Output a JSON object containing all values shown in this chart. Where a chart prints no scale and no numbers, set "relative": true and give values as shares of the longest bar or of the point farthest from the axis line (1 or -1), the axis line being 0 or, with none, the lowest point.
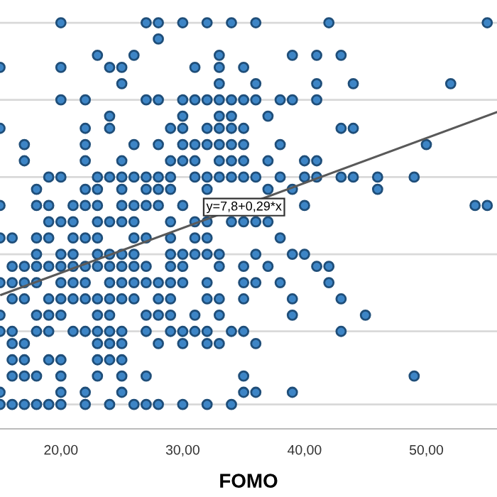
{
  "chart_data": {
    "type": "scatter",
    "relative": true,
    "xlabel": "FOMO",
    "xlim": [
      15,
      55.8
    ],
    "xticks": [
      {
        "value": 20,
        "label": "20,00"
      },
      {
        "value": 30,
        "label": "30,00"
      },
      {
        "value": 40,
        "label": "40,00"
      },
      {
        "value": 50,
        "label": "50,00"
      }
    ],
    "legend": false,
    "annotations": [
      "y=7,8+0,29*x"
    ],
    "ref_lines": [
      {
        "axis": "y",
        "value": 0.06,
        "color": "#d9d9d9"
      },
      {
        "axis": "y",
        "value": 0.24,
        "color": "#d9d9d9"
      },
      {
        "axis": "y",
        "value": 0.43,
        "color": "#d9d9d9"
      },
      {
        "axis": "y",
        "value": 0.62,
        "color": "#d9d9d9"
      },
      {
        "axis": "y",
        "value": 0.81,
        "color": "#d9d9d9"
      },
      {
        "axis": "y",
        "value": 1.0,
        "color": "#d9d9d9"
      }
    ],
    "series": [
      {
        "color": "#3d85c6",
        "marker": "circle",
        "x": [
          20,
          27,
          28,
          30,
          32,
          34,
          36,
          42,
          55,
          28,
          23,
          26,
          33,
          39,
          41,
          43,
          15,
          20,
          24,
          25,
          31,
          33,
          35,
          25,
          33,
          36,
          41,
          44,
          52,
          20,
          22,
          27,
          28,
          30,
          31,
          32,
          33,
          34,
          35,
          36,
          38,
          39,
          41,
          24,
          30,
          33,
          34,
          37,
          15,
          22,
          24,
          29,
          30,
          32,
          33,
          34,
          35,
          43,
          44,
          17,
          22,
          26,
          28,
          30,
          31,
          32,
          33,
          34,
          35,
          38,
          50,
          17,
          22,
          25,
          29,
          30,
          31,
          33,
          34,
          35,
          37,
          40,
          41,
          19,
          20,
          23,
          24,
          25,
          26,
          27,
          28,
          29,
          31,
          32,
          33,
          34,
          35,
          36,
          38,
          40,
          41,
          43,
          44,
          46,
          49,
          18,
          22,
          23,
          25,
          27,
          28,
          29,
          32,
          37,
          39,
          46,
          15,
          18,
          19,
          21,
          22,
          23,
          25,
          26,
          27,
          28,
          30,
          40,
          54,
          55,
          19,
          20,
          21,
          23,
          24,
          25,
          26,
          29,
          31,
          32,
          34,
          35,
          36,
          37,
          15,
          16,
          18,
          19,
          21,
          22,
          23,
          26,
          27,
          29,
          31,
          32,
          38,
          18,
          20,
          21,
          23,
          24,
          25,
          26,
          29,
          30,
          31,
          32,
          33,
          36,
          39,
          40,
          16,
          17,
          18,
          19,
          20,
          21,
          22,
          23,
          24,
          25,
          26,
          27,
          29,
          30,
          33,
          35,
          37,
          41,
          42,
          15,
          16,
          17,
          18,
          20,
          21,
          22,
          24,
          25,
          26,
          27,
          28,
          29,
          30,
          32,
          35,
          36,
          38,
          42,
          16,
          17,
          19,
          20,
          21,
          22,
          23,
          24,
          25,
          26,
          28,
          29,
          32,
          33,
          35,
          39,
          43,
          15,
          18,
          19,
          20,
          23,
          24,
          27,
          28,
          29,
          31,
          33,
          39,
          45,
          15,
          16,
          18,
          19,
          21,
          22,
          23,
          24,
          25,
          27,
          29,
          30,
          31,
          32,
          34,
          35,
          43,
          16,
          17,
          23,
          24,
          25,
          28,
          30,
          32,
          33,
          36,
          16,
          17,
          19,
          20,
          23,
          24,
          25,
          16,
          17,
          18,
          20,
          23,
          25,
          27,
          35,
          49,
          15,
          20,
          22,
          25,
          35,
          36,
          39,
          15,
          16,
          17,
          18,
          19,
          20,
          22,
          24,
          26,
          27,
          28,
          30,
          32,
          34
        ],
        "values": [
          1.0,
          1.0,
          1.0,
          1.0,
          1.0,
          1.0,
          1.0,
          1.0,
          1.0,
          0.96,
          0.92,
          0.92,
          0.92,
          0.92,
          0.92,
          0.92,
          0.89,
          0.89,
          0.89,
          0.89,
          0.89,
          0.89,
          0.89,
          0.85,
          0.85,
          0.85,
          0.85,
          0.85,
          0.85,
          0.81,
          0.81,
          0.81,
          0.81,
          0.81,
          0.81,
          0.81,
          0.81,
          0.81,
          0.81,
          0.81,
          0.81,
          0.81,
          0.81,
          0.77,
          0.77,
          0.77,
          0.77,
          0.77,
          0.74,
          0.74,
          0.74,
          0.74,
          0.74,
          0.74,
          0.74,
          0.74,
          0.74,
          0.74,
          0.74,
          0.7,
          0.7,
          0.7,
          0.7,
          0.7,
          0.7,
          0.7,
          0.7,
          0.7,
          0.7,
          0.7,
          0.7,
          0.66,
          0.66,
          0.66,
          0.66,
          0.66,
          0.66,
          0.66,
          0.66,
          0.66,
          0.66,
          0.66,
          0.66,
          0.62,
          0.62,
          0.62,
          0.62,
          0.62,
          0.62,
          0.62,
          0.62,
          0.62,
          0.62,
          0.62,
          0.62,
          0.62,
          0.62,
          0.62,
          0.62,
          0.62,
          0.62,
          0.62,
          0.62,
          0.62,
          0.62,
          0.59,
          0.59,
          0.59,
          0.59,
          0.59,
          0.59,
          0.59,
          0.59,
          0.59,
          0.59,
          0.59,
          0.55,
          0.55,
          0.55,
          0.55,
          0.55,
          0.55,
          0.55,
          0.55,
          0.55,
          0.55,
          0.55,
          0.55,
          0.55,
          0.55,
          0.51,
          0.51,
          0.51,
          0.51,
          0.51,
          0.51,
          0.51,
          0.51,
          0.51,
          0.51,
          0.51,
          0.51,
          0.51,
          0.51,
          0.47,
          0.47,
          0.47,
          0.47,
          0.47,
          0.47,
          0.47,
          0.47,
          0.47,
          0.47,
          0.47,
          0.47,
          0.47,
          0.43,
          0.43,
          0.43,
          0.43,
          0.43,
          0.43,
          0.43,
          0.43,
          0.43,
          0.43,
          0.43,
          0.43,
          0.43,
          0.43,
          0.43,
          0.4,
          0.4,
          0.4,
          0.4,
          0.4,
          0.4,
          0.4,
          0.4,
          0.4,
          0.4,
          0.4,
          0.4,
          0.4,
          0.4,
          0.4,
          0.4,
          0.4,
          0.4,
          0.4,
          0.36,
          0.36,
          0.36,
          0.36,
          0.36,
          0.36,
          0.36,
          0.36,
          0.36,
          0.36,
          0.36,
          0.36,
          0.36,
          0.36,
          0.36,
          0.36,
          0.36,
          0.36,
          0.36,
          0.32,
          0.32,
          0.32,
          0.32,
          0.32,
          0.32,
          0.32,
          0.32,
          0.32,
          0.32,
          0.32,
          0.32,
          0.32,
          0.32,
          0.32,
          0.32,
          0.32,
          0.28,
          0.28,
          0.28,
          0.28,
          0.28,
          0.28,
          0.28,
          0.28,
          0.28,
          0.28,
          0.28,
          0.28,
          0.28,
          0.24,
          0.24,
          0.24,
          0.24,
          0.24,
          0.24,
          0.24,
          0.24,
          0.24,
          0.24,
          0.24,
          0.24,
          0.24,
          0.24,
          0.24,
          0.24,
          0.24,
          0.21,
          0.21,
          0.21,
          0.21,
          0.21,
          0.21,
          0.21,
          0.21,
          0.21,
          0.21,
          0.17,
          0.17,
          0.17,
          0.17,
          0.17,
          0.17,
          0.17,
          0.13,
          0.13,
          0.13,
          0.13,
          0.13,
          0.13,
          0.13,
          0.13,
          0.13,
          0.09,
          0.09,
          0.09,
          0.09,
          0.09,
          0.09,
          0.09,
          0.06,
          0.06,
          0.06,
          0.06,
          0.06,
          0.06,
          0.06,
          0.06,
          0.06,
          0.06,
          0.06,
          0.06,
          0.06,
          0.06
        ]
      },
      {
        "type": "line",
        "color": "#595959",
        "x": [
          15.1,
          55.8
        ],
        "values": [
          0.33,
          0.78
        ]
      }
    ]
  }
}
